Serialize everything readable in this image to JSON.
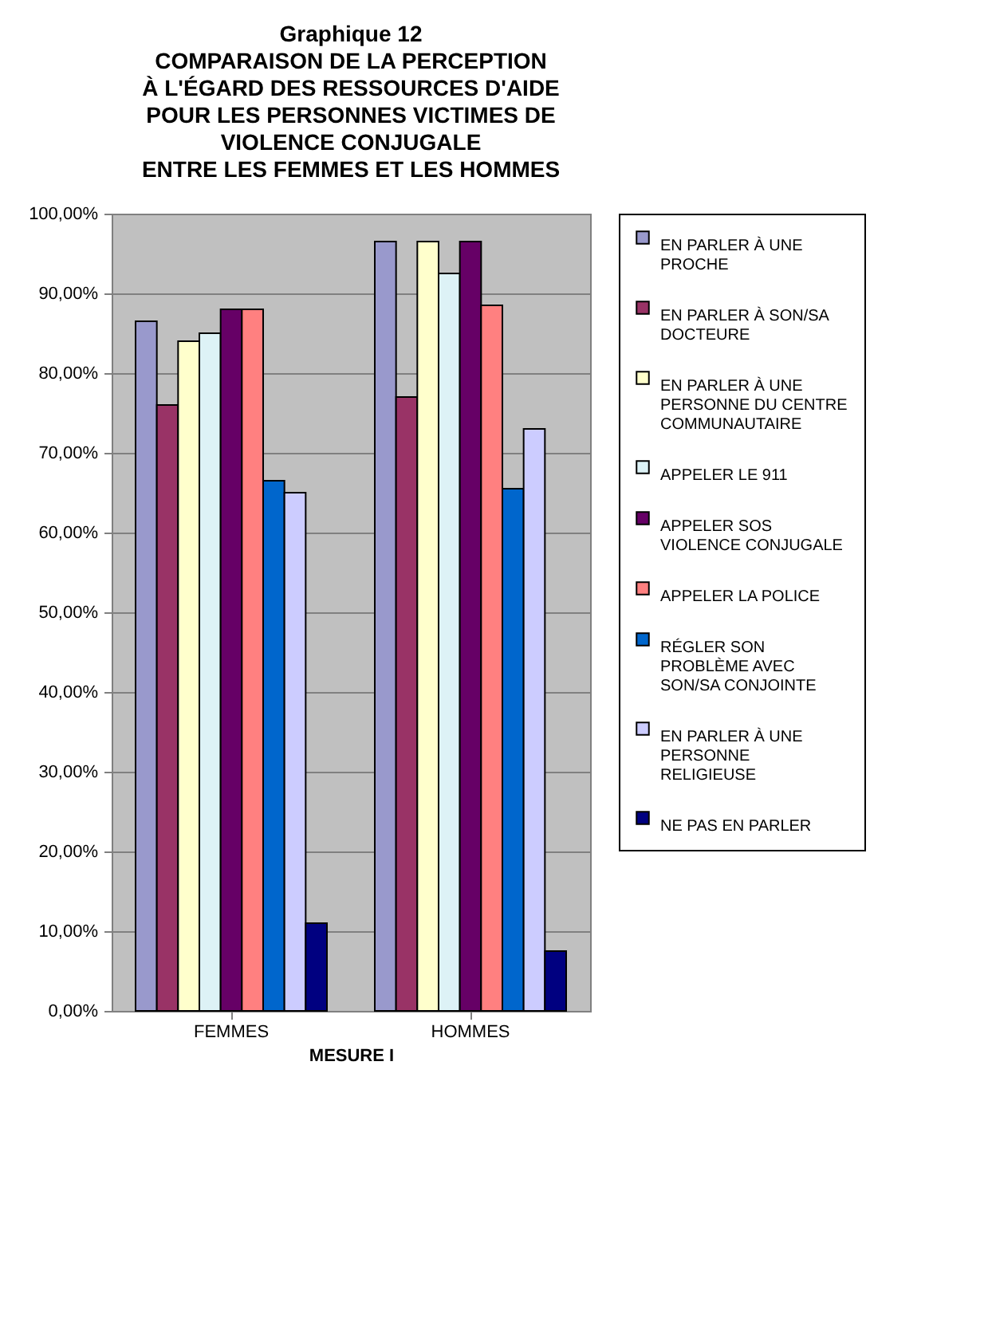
{
  "chart_data": {
    "type": "bar",
    "title": "Graphique 12\nCOMPARAISON DE LA PERCEPTION\nÀ L'ÉGARD DES RESSOURCES D'AIDE\nPOUR LES PERSONNES VICTIMES DE\nVIOLENCE CONJUGALE\nENTRE LES  FEMMES ET LES  HOMMES",
    "xlabel": "MESURE I",
    "categories": [
      "FEMMES",
      "HOMMES"
    ],
    "series": [
      {
        "name": "EN PARLER À UNE PROCHE",
        "color": "#9999cc",
        "values": [
          86.5,
          96.5
        ]
      },
      {
        "name": "EN PARLER À SON/SA DOCTEURE",
        "color": "#993366",
        "values": [
          76,
          77
        ]
      },
      {
        "name": "EN PARLER À UNE PERSONNE DU CENTRE COMMUNAUTAIRE",
        "color": "#ffffcc",
        "values": [
          84,
          96.5
        ]
      },
      {
        "name": "APPELER LE 911",
        "color": "#ddf2f6",
        "values": [
          85,
          92.5
        ]
      },
      {
        "name": "APPELER SOS VIOLENCE CONJUGALE",
        "color": "#660066",
        "values": [
          88,
          96.5
        ]
      },
      {
        "name": "APPELER LA POLICE",
        "color": "#ff8080",
        "values": [
          88,
          88.5
        ]
      },
      {
        "name": "RÉGLER SON PROBLÈME AVEC SON/SA CONJOINTE",
        "color": "#0066cc",
        "values": [
          66.5,
          65.5
        ]
      },
      {
        "name": "EN PARLER À UNE PERSONNE RELIGIEUSE",
        "color": "#ccccff",
        "values": [
          65,
          73
        ]
      },
      {
        "name": "NE PAS EN PARLER",
        "color": "#000080",
        "values": [
          11,
          7.5
        ]
      }
    ],
    "ylim": [
      0,
      100
    ],
    "yticks": [
      {
        "value": 0,
        "label": "0,00%"
      },
      {
        "value": 10,
        "label": "10,00%"
      },
      {
        "value": 20,
        "label": "20,00%"
      },
      {
        "value": 30,
        "label": "30,00%"
      },
      {
        "value": 40,
        "label": "40,00%"
      },
      {
        "value": 50,
        "label": "50,00%"
      },
      {
        "value": 60,
        "label": "60,00%"
      },
      {
        "value": 70,
        "label": "70,00%"
      },
      {
        "value": 80,
        "label": "80,00%"
      },
      {
        "value": 90,
        "label": "90,00%"
      },
      {
        "value": 100,
        "label": "100,00%"
      }
    ],
    "grid": "y",
    "legend": "right"
  }
}
